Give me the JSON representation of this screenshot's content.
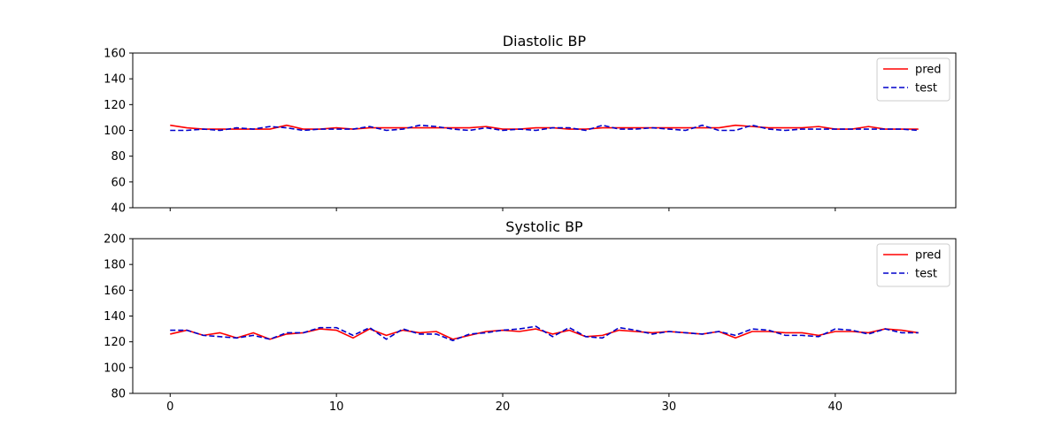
{
  "chart_data": [
    {
      "type": "line",
      "title": "Diastolic BP",
      "xlabel": "",
      "ylabel": "",
      "ylim": [
        40,
        160
      ],
      "xlim": [
        -2.25,
        47.25
      ],
      "y_ticks": [
        40,
        60,
        80,
        100,
        120,
        140,
        160
      ],
      "x_ticks": [
        0,
        10,
        20,
        30,
        40
      ],
      "x_tick_labels_visible": false,
      "grid": false,
      "legend": {
        "placement": "top-right",
        "entries": [
          "pred",
          "test"
        ]
      },
      "x": [
        0,
        1,
        2,
        3,
        4,
        5,
        6,
        7,
        8,
        9,
        10,
        11,
        12,
        13,
        14,
        15,
        16,
        17,
        18,
        19,
        20,
        21,
        22,
        23,
        24,
        25,
        26,
        27,
        28,
        29,
        30,
        31,
        32,
        33,
        34,
        35,
        36,
        37,
        38,
        39,
        40,
        41,
        42,
        43,
        44,
        45
      ],
      "series": [
        {
          "name": "pred",
          "color": "#ff0000",
          "style": "solid",
          "values": [
            104,
            102,
            101,
            101,
            101,
            101,
            101,
            104,
            101,
            101,
            102,
            101,
            102,
            102,
            102,
            102,
            102,
            102,
            102,
            103,
            101,
            101,
            102,
            102,
            101,
            101,
            102,
            102,
            102,
            102,
            102,
            102,
            102,
            102,
            104,
            103,
            102,
            102,
            102,
            103,
            101,
            101,
            103,
            101,
            101,
            101
          ]
        },
        {
          "name": "test",
          "color": "#0000cc",
          "style": "dashed",
          "values": [
            100,
            100,
            101,
            100,
            102,
            101,
            103,
            102,
            100,
            101,
            101,
            101,
            103,
            100,
            101,
            104,
            103,
            101,
            100,
            102,
            100,
            101,
            100,
            102,
            102,
            100,
            104,
            101,
            101,
            102,
            101,
            100,
            104,
            100,
            100,
            104,
            101,
            100,
            101,
            101,
            101,
            101,
            101,
            101,
            101,
            100
          ]
        }
      ]
    },
    {
      "type": "line",
      "title": "Systolic BP",
      "xlabel": "",
      "ylabel": "",
      "ylim": [
        80,
        200
      ],
      "xlim": [
        -2.25,
        47.25
      ],
      "y_ticks": [
        80,
        100,
        120,
        140,
        160,
        180,
        200
      ],
      "x_ticks": [
        0,
        10,
        20,
        30,
        40
      ],
      "x_tick_labels_visible": true,
      "grid": false,
      "legend": {
        "placement": "top-right",
        "entries": [
          "pred",
          "test"
        ]
      },
      "x": [
        0,
        1,
        2,
        3,
        4,
        5,
        6,
        7,
        8,
        9,
        10,
        11,
        12,
        13,
        14,
        15,
        16,
        17,
        18,
        19,
        20,
        21,
        22,
        23,
        24,
        25,
        26,
        27,
        28,
        29,
        30,
        31,
        32,
        33,
        34,
        35,
        36,
        37,
        38,
        39,
        40,
        41,
        42,
        43,
        44,
        45
      ],
      "series": [
        {
          "name": "pred",
          "color": "#ff0000",
          "style": "solid",
          "values": [
            126,
            129,
            125,
            127,
            123,
            127,
            122,
            126,
            127,
            130,
            129,
            123,
            130,
            125,
            129,
            127,
            128,
            122,
            125,
            128,
            129,
            128,
            130,
            126,
            129,
            124,
            125,
            129,
            128,
            127,
            128,
            127,
            126,
            128,
            123,
            128,
            128,
            127,
            127,
            125,
            128,
            128,
            127,
            130,
            129,
            127
          ]
        },
        {
          "name": "test",
          "color": "#0000cc",
          "style": "dashed",
          "values": [
            129,
            129,
            125,
            124,
            123,
            125,
            122,
            127,
            127,
            131,
            131,
            125,
            131,
            122,
            130,
            126,
            126,
            121,
            126,
            127,
            129,
            130,
            132,
            124,
            131,
            124,
            123,
            131,
            129,
            126,
            128,
            127,
            126,
            128,
            125,
            130,
            129,
            125,
            125,
            124,
            130,
            129,
            126,
            130,
            127,
            127
          ]
        }
      ]
    }
  ]
}
